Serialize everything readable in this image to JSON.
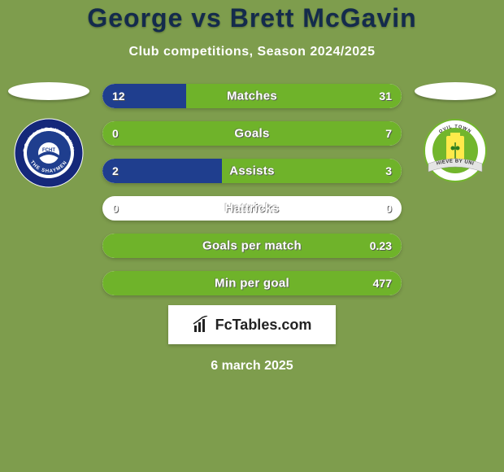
{
  "background_color": "#7e9d4d",
  "title": "George vs Brett McGavin",
  "title_color": "#142b4c",
  "subtitle": "Club competitions, Season 2024/2025",
  "subtitle_color": "#ffffff",
  "left_team_color": "#1f3e8e",
  "right_team_color": "#6fb32a",
  "stats": [
    {
      "label": "Matches",
      "left_val": "12",
      "right_val": "31",
      "left_pct": 27.9,
      "right_pct": 72.1
    },
    {
      "label": "Goals",
      "left_val": "0",
      "right_val": "7",
      "left_pct": 0.0,
      "right_pct": 100.0
    },
    {
      "label": "Assists",
      "left_val": "2",
      "right_val": "3",
      "left_pct": 40.0,
      "right_pct": 60.0
    },
    {
      "label": "Hattricks",
      "left_val": "0",
      "right_val": "0",
      "left_pct": 0.0,
      "right_pct": 0.0
    },
    {
      "label": "Goals per match",
      "left_val": "",
      "right_val": "0.23",
      "left_pct": 0.0,
      "right_pct": 100.0
    },
    {
      "label": "Min per goal",
      "left_val": "",
      "right_val": "477",
      "left_pct": 0.0,
      "right_pct": 100.0
    }
  ],
  "stat_left_color": "#1f3e8e",
  "stat_right_color": "#6fb32a",
  "stat_bar_bg": "#ffffff",
  "stat_label_fontsize": 15,
  "stat_val_fontsize": 14,
  "brand_text": "FcTables.com",
  "brand_bg": "#ffffff",
  "date_text": "6 march 2025",
  "date_color": "#ffffff",
  "left_badge": {
    "outer": "#15287a",
    "ring": "#ffffff",
    "inner": "#1f3e8e",
    "text_top": "FC HALIFAX TOWN",
    "text_bottom": "THE SHAYMEN"
  },
  "right_badge": {
    "outer": "#ffffff",
    "ring": "#72b62c",
    "inner": "#ffea4a",
    "banner": "#e4e4e4",
    "banner_text": "VILLE BY UNI"
  }
}
